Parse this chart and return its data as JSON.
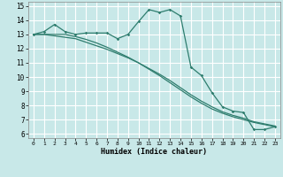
{
  "xlabel": "Humidex (Indice chaleur)",
  "bg_color": "#c8e8e8",
  "grid_color": "#ffffff",
  "line_color": "#2e7d6e",
  "xlim": [
    -0.5,
    23.5
  ],
  "ylim": [
    5.7,
    15.3
  ],
  "xticks": [
    0,
    1,
    2,
    3,
    4,
    5,
    6,
    7,
    8,
    9,
    10,
    11,
    12,
    13,
    14,
    15,
    16,
    17,
    18,
    19,
    20,
    21,
    22,
    23
  ],
  "yticks": [
    6,
    7,
    8,
    9,
    10,
    11,
    12,
    13,
    14,
    15
  ],
  "line1_x": [
    0,
    1,
    2,
    3,
    4,
    5,
    6,
    7,
    8,
    9,
    10,
    11,
    12,
    13,
    14,
    15,
    16,
    17,
    18,
    19,
    20,
    21,
    22,
    23
  ],
  "line1_y": [
    13.0,
    13.2,
    13.7,
    13.2,
    13.0,
    13.1,
    13.1,
    13.1,
    12.7,
    13.0,
    13.9,
    14.75,
    14.55,
    14.75,
    14.3,
    10.7,
    10.1,
    8.9,
    7.9,
    7.6,
    7.5,
    6.3,
    6.3,
    6.5
  ],
  "line2_x": [
    0,
    1,
    2,
    3,
    4,
    5,
    6,
    7,
    8,
    9,
    10,
    11,
    12,
    13,
    14,
    15,
    16,
    17,
    18,
    19,
    20,
    21,
    22,
    23
  ],
  "line2_y": [
    13.0,
    13.0,
    12.9,
    12.8,
    12.7,
    12.45,
    12.2,
    11.95,
    11.65,
    11.35,
    11.0,
    10.6,
    10.2,
    9.75,
    9.25,
    8.75,
    8.3,
    7.9,
    7.55,
    7.3,
    7.1,
    6.85,
    6.7,
    6.55
  ],
  "line3_x": [
    0,
    1,
    2,
    3,
    4,
    5,
    6,
    7,
    8,
    9,
    10,
    11,
    12,
    13,
    14,
    15,
    16,
    17,
    18,
    19,
    20,
    21,
    22,
    23
  ],
  "line3_y": [
    13.0,
    13.0,
    13.0,
    13.0,
    12.85,
    12.65,
    12.4,
    12.1,
    11.75,
    11.4,
    11.0,
    10.55,
    10.1,
    9.6,
    9.1,
    8.6,
    8.15,
    7.75,
    7.45,
    7.2,
    7.0,
    6.8,
    6.65,
    6.5
  ]
}
